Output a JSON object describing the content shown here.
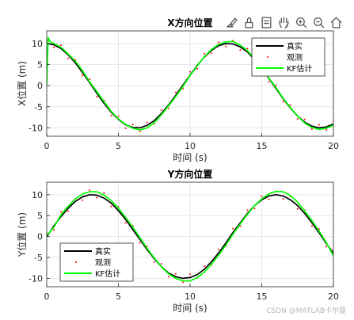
{
  "toolbar": {
    "icons": [
      "brush-icon",
      "export-icon",
      "datatip-icon",
      "pan-hand-icon",
      "zoom-in-icon",
      "zoom-out-icon",
      "home-icon"
    ]
  },
  "watermark": "CSDN @MATLAB卡尔曼",
  "chart_data": [
    {
      "type": "line",
      "title": "X方向位置",
      "xlabel": "时间 (s)",
      "ylabel": "X位置 (m)",
      "xlim": [
        0,
        20
      ],
      "ylim": [
        -12,
        13
      ],
      "xticks": [
        0,
        5,
        10,
        15,
        20
      ],
      "yticks": [
        -10,
        -5,
        0,
        5,
        10
      ],
      "grid": true,
      "legend": {
        "position": "top-right",
        "entries": [
          "真实",
          "观测",
          "KF估计"
        ]
      },
      "series": [
        {
          "name": "真实",
          "color": "#000000",
          "style": "line",
          "x": [
            0,
            0.5,
            1,
            1.5,
            2,
            2.5,
            3,
            3.5,
            4,
            4.5,
            5,
            5.5,
            6,
            6.5,
            7,
            7.5,
            8,
            8.5,
            9,
            9.5,
            10,
            10.5,
            11,
            11.5,
            12,
            12.5,
            13,
            13.5,
            14,
            14.5,
            15,
            15.5,
            16,
            16.5,
            17,
            17.5,
            18,
            18.5,
            19,
            19.5,
            20
          ],
          "y": [
            10,
            9.7,
            8.8,
            7.3,
            5.4,
            3.1,
            0.7,
            -1.8,
            -4.2,
            -6.3,
            -8.0,
            -9.3,
            -9.9,
            -10.0,
            -9.4,
            -8.3,
            -6.6,
            -4.6,
            -2.3,
            0.1,
            2.5,
            4.8,
            6.8,
            8.4,
            9.5,
            10.0,
            9.9,
            9.2,
            8.0,
            6.2,
            4.1,
            1.7,
            -0.7,
            -3.1,
            -5.3,
            -7.2,
            -8.7,
            -9.6,
            -10.0,
            -9.8,
            -9.1
          ]
        },
        {
          "name": "观测",
          "color": "#ff0000",
          "style": "dots",
          "x": [
            0,
            0.5,
            1,
            1.5,
            2,
            2.5,
            3,
            3.5,
            4,
            4.5,
            5,
            5.5,
            6,
            6.5,
            7,
            7.5,
            8,
            8.5,
            9,
            9.5,
            10,
            10.5,
            11,
            11.5,
            12,
            12.5,
            13,
            13.5,
            14,
            14.5,
            15,
            15.5,
            16,
            16.5,
            17,
            17.5,
            18,
            18.5,
            19,
            19.5,
            20
          ],
          "y": [
            10.8,
            9.1,
            9.6,
            6.5,
            6.1,
            2.4,
            1.5,
            -2.6,
            -3.5,
            -7.1,
            -7.3,
            -10.1,
            -9.2,
            -10.8,
            -8.7,
            -9.0,
            -5.8,
            -5.4,
            -1.6,
            -0.7,
            3.3,
            4.0,
            7.6,
            7.7,
            10.3,
            9.3,
            10.7,
            8.5,
            8.8,
            5.5,
            4.9,
            0.9,
            0.1,
            -3.8,
            -4.6,
            -7.9,
            -8.0,
            -10.3,
            -9.3,
            -10.5,
            -8.4
          ]
        },
        {
          "name": "KF估计",
          "color": "#00ff00",
          "style": "line",
          "x": [
            0,
            0.1,
            0.25,
            0.5,
            1,
            1.5,
            2,
            2.5,
            3,
            3.5,
            4,
            4.5,
            5,
            5.5,
            6,
            6.5,
            7,
            7.5,
            8,
            8.5,
            9,
            9.5,
            10,
            10.5,
            11,
            11.5,
            12,
            12.5,
            13,
            13.5,
            14,
            14.5,
            15,
            15.5,
            16,
            16.5,
            17,
            17.5,
            18,
            18.5,
            19,
            19.5,
            20
          ],
          "y": [
            0,
            11.4,
            10.4,
            10.0,
            9.1,
            7.5,
            5.8,
            3.5,
            0.9,
            -1.4,
            -3.8,
            -6.1,
            -7.9,
            -9.2,
            -10.1,
            -10.5,
            -10.0,
            -8.8,
            -6.9,
            -4.8,
            -2.6,
            -0.2,
            2.4,
            4.7,
            6.9,
            8.6,
            9.8,
            10.4,
            10.5,
            9.6,
            8.3,
            6.4,
            4.3,
            1.8,
            -0.5,
            -3.0,
            -5.2,
            -7.2,
            -8.9,
            -9.9,
            -10.4,
            -10.1,
            -9.4
          ]
        }
      ]
    },
    {
      "type": "line",
      "title": "Y方向位置",
      "xlabel": "时间 (s)",
      "ylabel": "Y位置 (m)",
      "xlim": [
        0,
        20
      ],
      "ylim": [
        -12,
        13
      ],
      "xticks": [
        0,
        5,
        10,
        15,
        20
      ],
      "yticks": [
        -10,
        -5,
        0,
        5,
        10
      ],
      "grid": true,
      "legend": {
        "position": "bottom-left",
        "entries": [
          "真实",
          "观测",
          "KF估计"
        ]
      },
      "series": [
        {
          "name": "真实",
          "color": "#000000",
          "style": "line",
          "x": [
            0,
            0.5,
            1,
            1.5,
            2,
            2.5,
            3,
            3.5,
            4,
            4.5,
            5,
            5.5,
            6,
            6.5,
            7,
            7.5,
            8,
            8.5,
            9,
            9.5,
            10,
            10.5,
            11,
            11.5,
            12,
            12.5,
            13,
            13.5,
            14,
            14.5,
            15,
            15.5,
            16,
            16.5,
            17,
            17.5,
            18,
            18.5,
            19,
            19.5,
            20
          ],
          "y": [
            0,
            2.5,
            4.8,
            6.8,
            8.4,
            9.5,
            10.0,
            9.9,
            9.2,
            8.0,
            6.2,
            4.1,
            1.7,
            -0.7,
            -3.1,
            -5.3,
            -7.2,
            -8.7,
            -9.6,
            -10.0,
            -9.8,
            -9.1,
            -7.8,
            -6.0,
            -3.9,
            -1.5,
            1.0,
            3.3,
            5.5,
            7.4,
            8.8,
            9.7,
            10.0,
            9.7,
            8.8,
            7.4,
            5.5,
            3.3,
            0.9,
            -1.6,
            -4.0
          ]
        },
        {
          "name": "观测",
          "color": "#ff0000",
          "style": "dots",
          "x": [
            0,
            0.5,
            1,
            1.5,
            2,
            2.5,
            3,
            3.5,
            4,
            4.5,
            5,
            5.5,
            6,
            6.5,
            7,
            7.5,
            8,
            8.5,
            9,
            9.5,
            10,
            10.5,
            11,
            11.5,
            12,
            12.5,
            13,
            13.5,
            14,
            14.5,
            15,
            15.5,
            16,
            16.5,
            17,
            17.5,
            18,
            18.5,
            19,
            19.5,
            20
          ],
          "y": [
            0.8,
            1.6,
            5.9,
            6.1,
            9.0,
            8.7,
            11.1,
            9.3,
            10.4,
            7.2,
            7.1,
            3.3,
            2.6,
            -1.5,
            -2.4,
            -6.1,
            -6.5,
            -9.6,
            -8.9,
            -10.9,
            -9.0,
            -9.9,
            -7.1,
            -6.8,
            -3.1,
            -2.3,
            1.9,
            2.5,
            6.3,
            6.7,
            9.6,
            8.9,
            10.8,
            9.0,
            9.6,
            6.6,
            6.3,
            2.5,
            1.8,
            -2.4,
            -3.2
          ]
        },
        {
          "name": "KF估计",
          "color": "#00ff00",
          "style": "line",
          "x": [
            0,
            0.5,
            1,
            1.5,
            2,
            2.5,
            3,
            3.5,
            4,
            4.5,
            5,
            5.5,
            6,
            6.5,
            7,
            7.5,
            8,
            8.5,
            9,
            9.5,
            10,
            10.5,
            11,
            11.5,
            12,
            12.5,
            13,
            13.5,
            14,
            14.5,
            15,
            15.5,
            16,
            16.5,
            17,
            17.5,
            18,
            18.5,
            19,
            19.5,
            20
          ],
          "y": [
            0.3,
            2.2,
            5.2,
            7.3,
            9.0,
            10.2,
            10.7,
            10.7,
            9.9,
            8.6,
            6.8,
            4.6,
            2.3,
            -0.3,
            -2.8,
            -5.1,
            -7.2,
            -8.9,
            -10.0,
            -10.6,
            -10.6,
            -9.8,
            -8.5,
            -6.6,
            -4.4,
            -2.0,
            0.6,
            3.0,
            5.3,
            7.4,
            9.0,
            10.2,
            10.8,
            10.7,
            9.8,
            8.2,
            6.1,
            3.8,
            1.3,
            -1.4,
            -4.6
          ]
        }
      ]
    }
  ]
}
